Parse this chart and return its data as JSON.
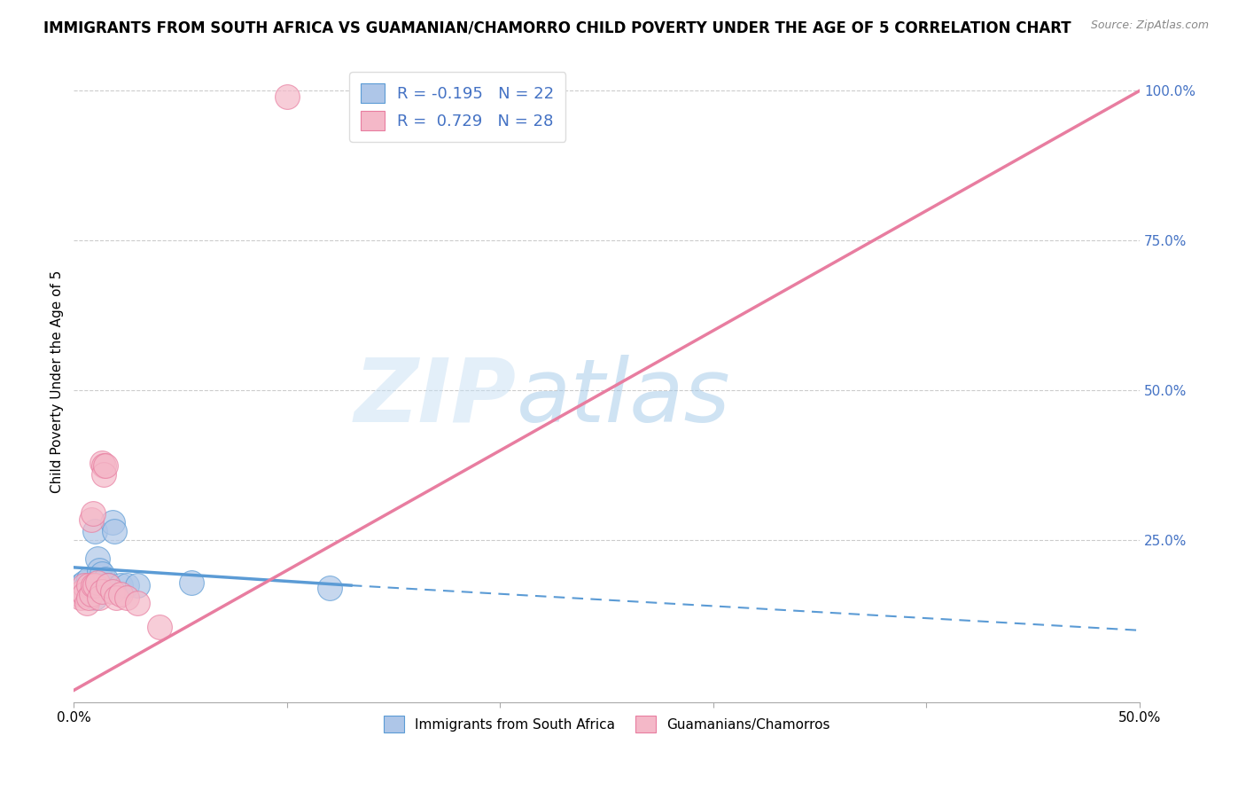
{
  "title": "IMMIGRANTS FROM SOUTH AFRICA VS GUAMANIAN/CHAMORRO CHILD POVERTY UNDER THE AGE OF 5 CORRELATION CHART",
  "source": "Source: ZipAtlas.com",
  "ylabel": "Child Poverty Under the Age of 5",
  "watermark_zip": "ZIP",
  "watermark_atlas": "atlas",
  "legend_label_blue": "R = -0.195   N = 22",
  "legend_label_pink": "R =  0.729   N = 28",
  "legend_bottom_blue": "Immigrants from South Africa",
  "legend_bottom_pink": "Guamanians/Chamorros",
  "blue_color": "#aec6e8",
  "pink_color": "#f4b8c8",
  "blue_line_color": "#5b9bd5",
  "pink_line_color": "#e87da0",
  "blue_scatter": [
    [
      0.003,
      0.175
    ],
    [
      0.004,
      0.165
    ],
    [
      0.005,
      0.18
    ],
    [
      0.006,
      0.175
    ],
    [
      0.007,
      0.185
    ],
    [
      0.008,
      0.165
    ],
    [
      0.009,
      0.17
    ],
    [
      0.01,
      0.155
    ],
    [
      0.01,
      0.265
    ],
    [
      0.011,
      0.22
    ],
    [
      0.012,
      0.2
    ],
    [
      0.013,
      0.195
    ],
    [
      0.014,
      0.175
    ],
    [
      0.015,
      0.185
    ],
    [
      0.016,
      0.175
    ],
    [
      0.018,
      0.28
    ],
    [
      0.019,
      0.265
    ],
    [
      0.022,
      0.175
    ],
    [
      0.025,
      0.175
    ],
    [
      0.03,
      0.175
    ],
    [
      0.055,
      0.18
    ],
    [
      0.12,
      0.17
    ]
  ],
  "pink_scatter": [
    [
      0.002,
      0.16
    ],
    [
      0.003,
      0.155
    ],
    [
      0.004,
      0.165
    ],
    [
      0.005,
      0.175
    ],
    [
      0.005,
      0.16
    ],
    [
      0.006,
      0.145
    ],
    [
      0.007,
      0.175
    ],
    [
      0.007,
      0.155
    ],
    [
      0.008,
      0.16
    ],
    [
      0.008,
      0.285
    ],
    [
      0.009,
      0.295
    ],
    [
      0.009,
      0.175
    ],
    [
      0.01,
      0.175
    ],
    [
      0.011,
      0.18
    ],
    [
      0.012,
      0.155
    ],
    [
      0.013,
      0.165
    ],
    [
      0.013,
      0.38
    ],
    [
      0.014,
      0.375
    ],
    [
      0.014,
      0.36
    ],
    [
      0.015,
      0.375
    ],
    [
      0.016,
      0.175
    ],
    [
      0.018,
      0.165
    ],
    [
      0.02,
      0.155
    ],
    [
      0.022,
      0.16
    ],
    [
      0.025,
      0.155
    ],
    [
      0.03,
      0.145
    ],
    [
      0.04,
      0.105
    ],
    [
      0.1,
      0.99
    ]
  ],
  "blue_trend_solid": [
    0.0,
    0.205,
    0.13,
    0.175
  ],
  "blue_trend_dash": [
    0.13,
    0.175,
    0.5,
    0.1
  ],
  "pink_trend": [
    0.0,
    0.0,
    0.5,
    1.0
  ],
  "xlim": [
    0.0,
    0.5
  ],
  "ylim": [
    -0.02,
    1.05
  ],
  "xtick_positions": [
    0.0,
    0.1,
    0.2,
    0.3,
    0.4,
    0.5
  ],
  "xtick_labels_show": {
    "0.0": "0.0%",
    "0.5": "50.0%"
  },
  "yticks_right": [
    0.25,
    0.5,
    0.75,
    1.0
  ],
  "yticklabels_right": [
    "25.0%",
    "50.0%",
    "75.0%",
    "100.0%"
  ],
  "grid_color": "#cccccc",
  "background_color": "#ffffff",
  "title_fontsize": 12,
  "axis_fontsize": 11
}
